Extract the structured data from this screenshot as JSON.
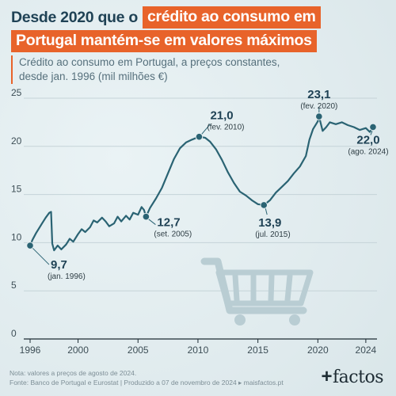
{
  "title": {
    "line1_plain": "Desde 2020 que o",
    "line1_highlight": "crédito ao consumo em",
    "line2_highlight": "Portugal mantém-se em valores máximos"
  },
  "subtitle": "Crédito ao consumo em Portugal, a preços constantes, desde jan. 1996 (mil milhões €)",
  "note_line1": "Nota: valores a preços de agosto de 2024.",
  "note_line2": "Fonte: Banco de Portugal e Eurostat | Produzido a 07 de novembro de 2024 ▸ maisfactos.pt",
  "logo": {
    "plus": "+",
    "word": "factos"
  },
  "colors": {
    "line": "#2a6373",
    "accent": "#e8632a",
    "title": "#1f4255",
    "grid": "#c5d3d8",
    "cart": "#b9cdd3"
  },
  "icon": "shopping-cart-icon",
  "chart_data": {
    "type": "line",
    "xlim": [
      1996,
      2024.8
    ],
    "ylim": [
      0,
      25
    ],
    "x_ticks": [
      1996,
      2000,
      2005,
      2010,
      2015,
      2020,
      2024
    ],
    "y_ticks": [
      0,
      5,
      10,
      15,
      20,
      25
    ],
    "grid": "horizontal",
    "series": [
      {
        "points": [
          [
            1996.0,
            9.7
          ],
          [
            1996.2,
            10.3
          ],
          [
            1996.5,
            11.0
          ],
          [
            1996.8,
            11.6
          ],
          [
            1997.0,
            12.0
          ],
          [
            1997.3,
            12.6
          ],
          [
            1997.6,
            13.1
          ],
          [
            1997.75,
            13.2
          ],
          [
            1997.85,
            9.9
          ],
          [
            1998.0,
            9.2
          ],
          [
            1998.3,
            9.7
          ],
          [
            1998.6,
            9.3
          ],
          [
            1999.0,
            9.8
          ],
          [
            1999.3,
            10.4
          ],
          [
            1999.6,
            10.1
          ],
          [
            2000.0,
            10.9
          ],
          [
            2000.3,
            11.4
          ],
          [
            2000.6,
            11.1
          ],
          [
            2001.0,
            11.6
          ],
          [
            2001.3,
            12.3
          ],
          [
            2001.6,
            12.1
          ],
          [
            2002.0,
            12.6
          ],
          [
            2002.3,
            12.2
          ],
          [
            2002.6,
            11.7
          ],
          [
            2003.0,
            12.0
          ],
          [
            2003.3,
            12.7
          ],
          [
            2003.6,
            12.2
          ],
          [
            2004.0,
            12.8
          ],
          [
            2004.3,
            12.4
          ],
          [
            2004.6,
            13.1
          ],
          [
            2005.0,
            12.9
          ],
          [
            2005.3,
            13.7
          ],
          [
            2005.5,
            13.4
          ],
          [
            2005.67,
            12.7
          ],
          [
            2006.0,
            13.6
          ],
          [
            2006.5,
            14.6
          ],
          [
            2007.0,
            15.7
          ],
          [
            2007.5,
            17.2
          ],
          [
            2008.0,
            18.7
          ],
          [
            2008.5,
            19.8
          ],
          [
            2009.0,
            20.4
          ],
          [
            2009.5,
            20.7
          ],
          [
            2010.1,
            21.0
          ],
          [
            2010.6,
            20.9
          ],
          [
            2011.0,
            20.5
          ],
          [
            2011.5,
            19.7
          ],
          [
            2012.0,
            18.6
          ],
          [
            2012.5,
            17.3
          ],
          [
            2013.0,
            16.2
          ],
          [
            2013.5,
            15.3
          ],
          [
            2014.0,
            14.9
          ],
          [
            2014.5,
            14.4
          ],
          [
            2015.0,
            14.0
          ],
          [
            2015.5,
            13.9
          ],
          [
            2016.0,
            14.4
          ],
          [
            2016.5,
            15.2
          ],
          [
            2017.0,
            15.8
          ],
          [
            2017.5,
            16.4
          ],
          [
            2018.0,
            17.2
          ],
          [
            2018.5,
            17.9
          ],
          [
            2019.0,
            19.0
          ],
          [
            2019.3,
            20.7
          ],
          [
            2019.6,
            21.8
          ],
          [
            2020.0,
            22.6
          ],
          [
            2020.1,
            23.1
          ],
          [
            2020.4,
            21.6
          ],
          [
            2020.7,
            22.0
          ],
          [
            2021.0,
            22.5
          ],
          [
            2021.5,
            22.3
          ],
          [
            2022.0,
            22.5
          ],
          [
            2022.5,
            22.2
          ],
          [
            2023.0,
            22.0
          ],
          [
            2023.5,
            21.7
          ],
          [
            2024.0,
            21.9
          ],
          [
            2024.33,
            21.5
          ],
          [
            2024.6,
            22.0
          ]
        ]
      }
    ],
    "annotations": [
      {
        "x": 1996.0,
        "y": 9.7,
        "value": "9,7",
        "date": "(jan. 1996)"
      },
      {
        "x": 2005.67,
        "y": 12.7,
        "value": "12,7",
        "date": "(set. 2005)"
      },
      {
        "x": 2010.1,
        "y": 21.0,
        "value": "21,0",
        "date": "(fev. 2010)"
      },
      {
        "x": 2015.5,
        "y": 13.9,
        "value": "13,9",
        "date": "(jul. 2015)"
      },
      {
        "x": 2020.1,
        "y": 23.1,
        "value": "23,1",
        "date": "(fev. 2020)"
      },
      {
        "x": 2024.6,
        "y": 22.0,
        "value": "22,0",
        "date": "(ago. 2024)"
      }
    ]
  }
}
